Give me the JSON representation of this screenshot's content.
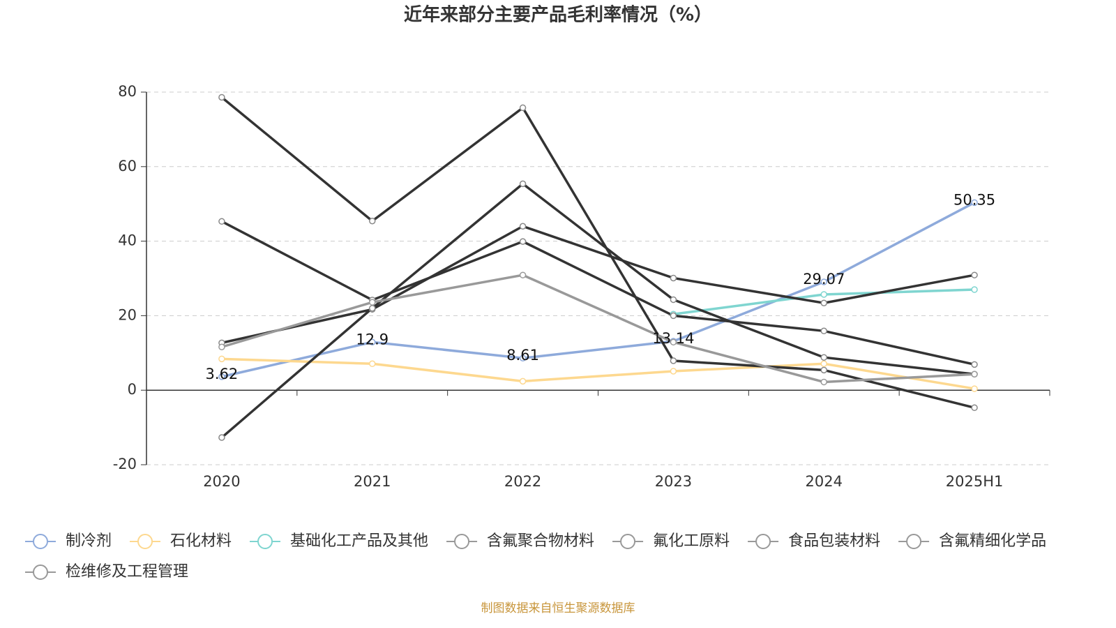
{
  "chart_data": {
    "type": "line",
    "title": "近年来部分主要产品毛利率情况（%）",
    "source": "制图数据来自恒生聚源数据库",
    "categories": [
      "2020",
      "2021",
      "2022",
      "2023",
      "2024",
      "2025H1"
    ],
    "ylim": [
      -20,
      80
    ],
    "yticks": [
      -20,
      0,
      20,
      40,
      60,
      80
    ],
    "grid": true,
    "series": [
      {
        "name": "制冷剂",
        "color": "#8eaadb",
        "values": [
          3.62,
          12.9,
          8.61,
          13.14,
          29.07,
          50.35
        ],
        "data_labels": true
      },
      {
        "name": "石化材料",
        "color": "#fdd88f",
        "values": [
          8.4,
          7.1,
          2.4,
          5.1,
          7.1,
          0.4
        ]
      },
      {
        "name": "基础化工产品及其他",
        "color": "#7fd5d0",
        "values": [
          null,
          null,
          null,
          20.4,
          25.7,
          27.0
        ]
      },
      {
        "name": "含氟聚合物材料",
        "color": "#333333",
        "values": [
          78.6,
          45.4,
          75.8,
          7.9,
          5.4,
          -4.7
        ]
      },
      {
        "name": "氟化工原料",
        "color": "#333333",
        "values": [
          45.3,
          24.2,
          39.9,
          20.0,
          15.9,
          6.9
        ]
      },
      {
        "name": "食品包装材料",
        "color": "#333333",
        "values": [
          12.7,
          21.7,
          44.0,
          30.1,
          23.4,
          30.9
        ]
      },
      {
        "name": "含氟精细化学品",
        "color": "#333333",
        "values": [
          -12.7,
          22.0,
          55.4,
          24.3,
          8.8,
          4.3
        ]
      },
      {
        "name": "检维修及工程管理",
        "color": "#999999",
        "values": [
          11.6,
          23.6,
          30.9,
          12.9,
          2.2,
          4.3
        ]
      }
    ]
  }
}
